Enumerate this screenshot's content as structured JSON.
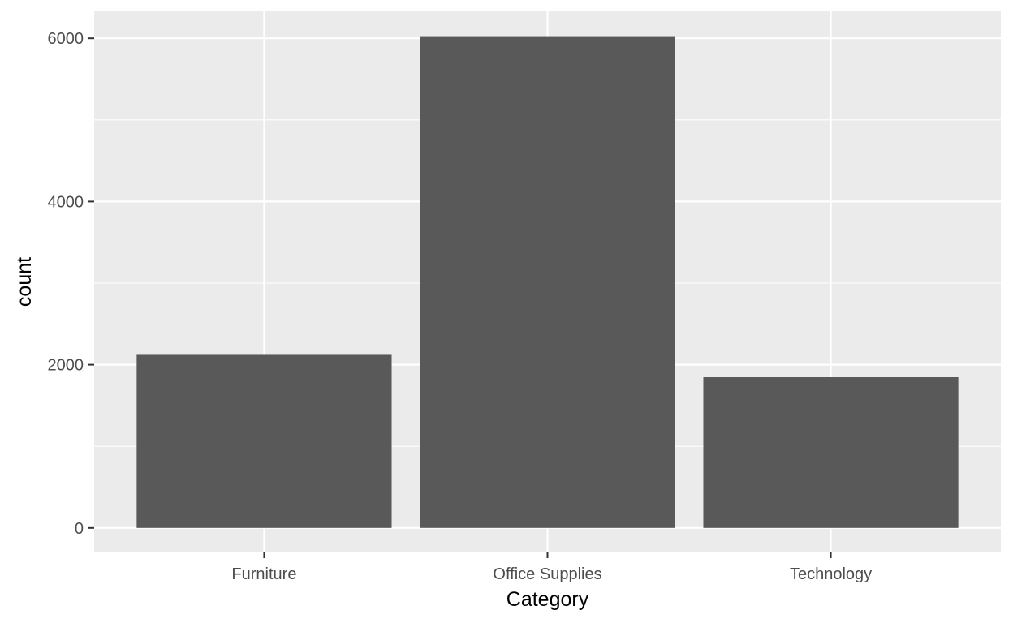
{
  "chart_data": {
    "type": "bar",
    "title": "",
    "xlabel": "Category",
    "ylabel": "count",
    "categories": [
      "Furniture",
      "Office Supplies",
      "Technology"
    ],
    "values": [
      2121,
      6026,
      1847
    ],
    "ylim": [
      -300,
      6330
    ],
    "yticks": [
      0,
      2000,
      4000,
      6000
    ],
    "grid": true,
    "legend": "none",
    "colors": {
      "panel_background": "#ebebeb",
      "grid_major": "#ffffff",
      "grid_minor": "#ffffff",
      "bar_fill": "#595959",
      "tick_mark": "#333333",
      "tick_text": "#4d4d4d",
      "axis_title": "#000000"
    }
  }
}
